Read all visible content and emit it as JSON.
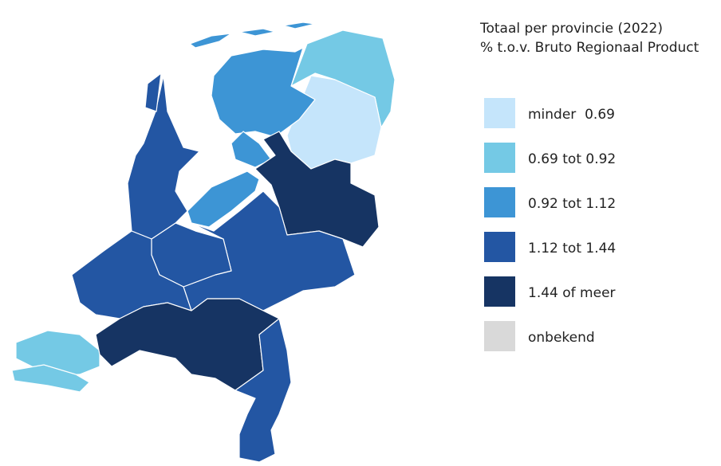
{
  "title": "Totaal per provincie (2022)",
  "subtitle": "% t.o.v. Bruto Regionaal Product",
  "legend": [
    {
      "label": "minder  0.69",
      "color": "#c5e5fb"
    },
    {
      "label": "0.69 tot 0.92",
      "color": "#74c9e5"
    },
    {
      "label": "0.92 tot 1.12",
      "color": "#3d95d5"
    },
    {
      "label": "1.12 tot 1.44",
      "color": "#2356a3"
    },
    {
      "label": "1.44 of meer",
      "color": "#163463"
    },
    {
      "label": "onbekend",
      "color": "#d9d9d9"
    }
  ]
}
